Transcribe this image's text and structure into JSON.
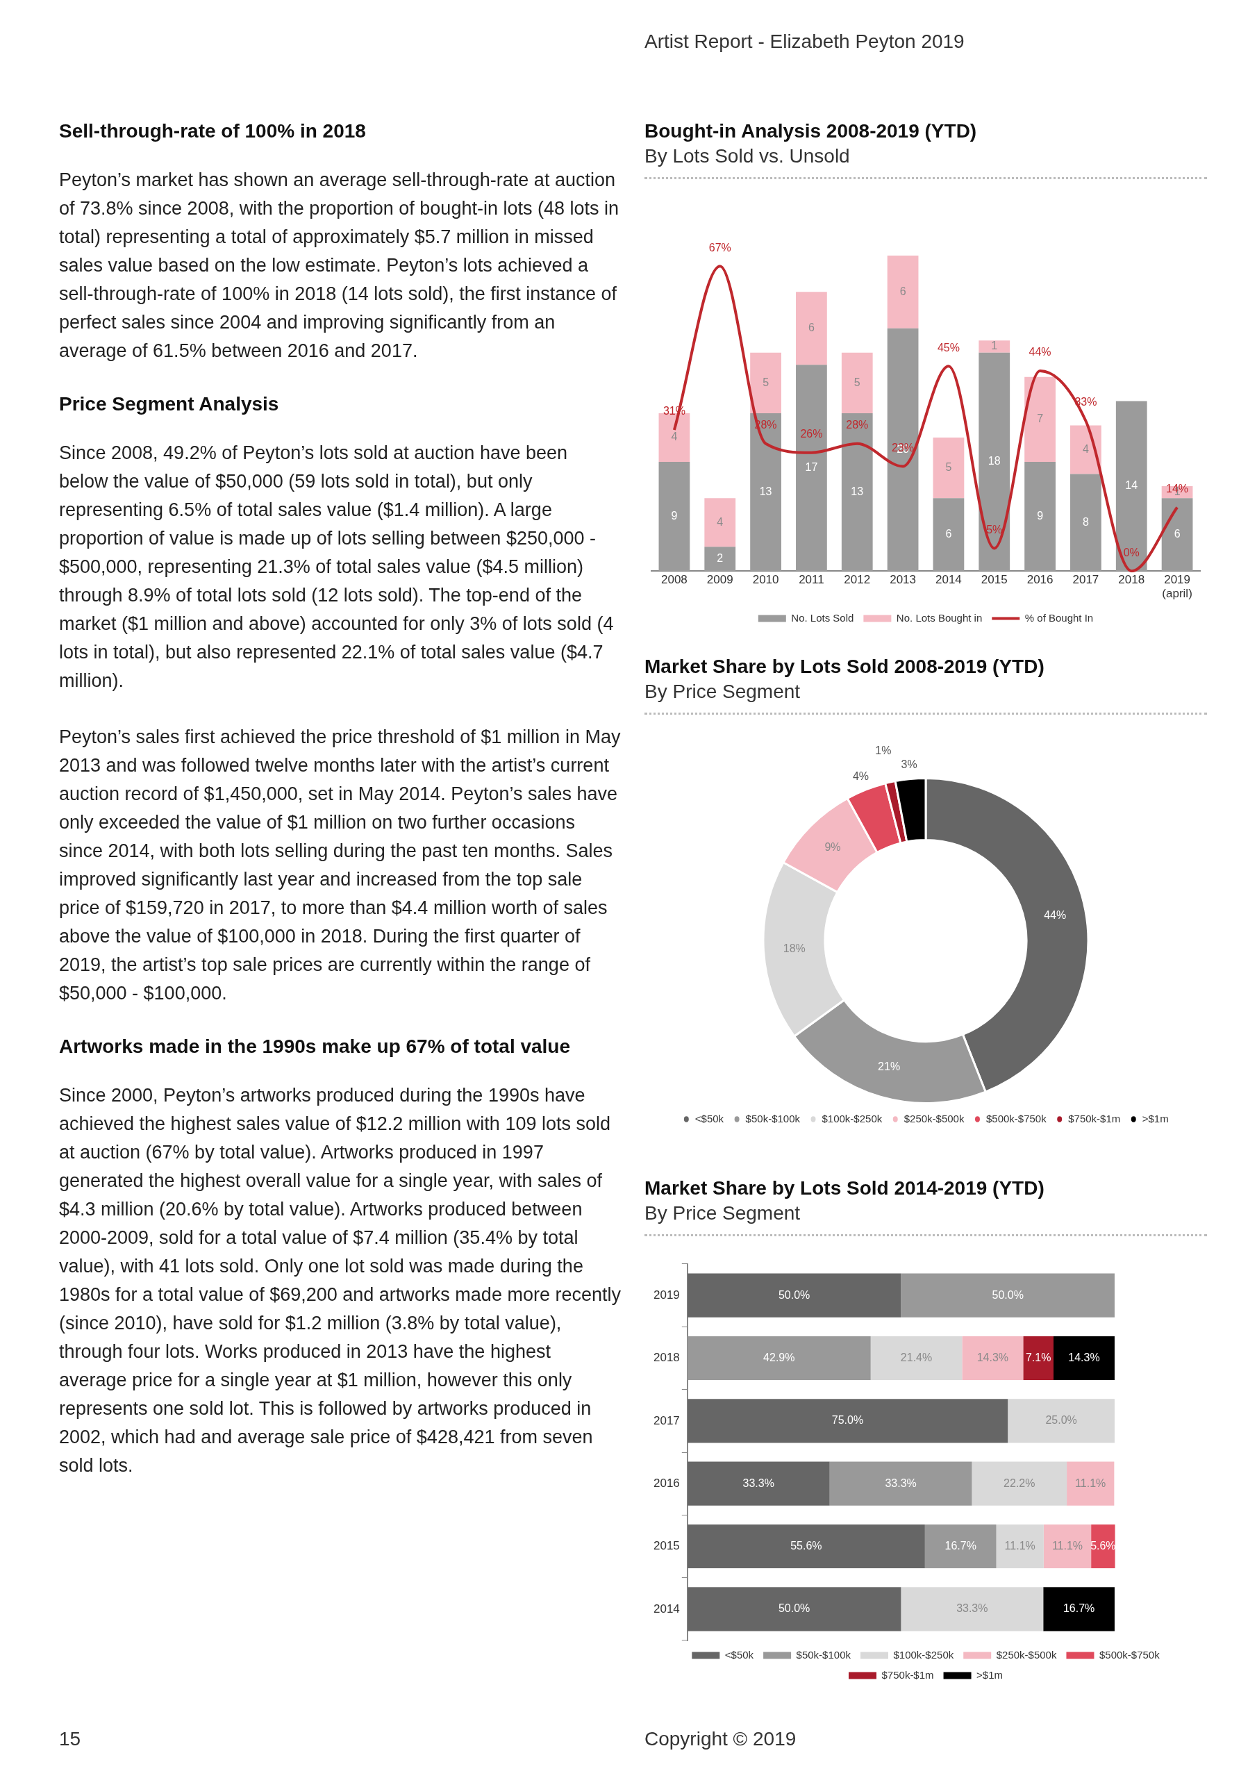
{
  "chart_data": [
    {
      "type": "other",
      "title": "Artist Report - Elizabeth Peyton 2019",
      "annotations": [
        "15",
        "Copyright © 2019"
      ]
    },
    {
      "type": "other",
      "title": "Sell-through-rate of 100% in 2018",
      "annotations": [
        "Peyton’s market has shown an average sell-through-rate at auction of 73.8% since 2008, with the proportion of bought-in lots (48 lots in total) representing a total of approximately $5.7 million in missed sales value based on the low estimate. Peyton’s lots achieved a sell-through-rate of 100% in 2018 (14 lots sold), the first instance of perfect sales since 2004 and improving significantly from an average of 61.5% between 2016 and 2017."
      ]
    },
    {
      "type": "other",
      "title": "Price Segment Analysis",
      "annotations": [
        "Since 2008, 49.2% of Peyton’s lots sold at auction have been below the value of $50,000 (59 lots sold in total), but only representing 6.5% of total sales value ($1.4 million). A large proportion of value is made up of lots selling between $250,000 - $500,000, representing 21.3% of total sales value ($4.5 million) through 8.9% of total lots sold (12 lots sold). The top-end of the market ($1 million and above) accounted for only 3% of lots sold (4 lots in total), but also represented 22.1% of total sales value ($4.7 million).",
        "Peyton’s sales first achieved the price threshold of $1 million in May 2013 and was followed twelve months later with the artist’s current auction record of $1,450,000, set in May 2014. Peyton’s sales have only exceeded the value of $1 million on two further occasions since 2014, with both lots selling during the past ten months. Sales improved significantly last year and increased from the top sale price of $159,720 in 2017, to more than $4.4 million worth of sales above the value of $100,000 in 2018. During the first quarter of 2019, the artist’s top sale prices are currently within the range of $50,000 - $100,000."
      ]
    },
    {
      "type": "other",
      "title": "Artworks made in the 1990s make up 67% of total value",
      "annotations": [
        "Since 2000, Peyton’s artworks produced during the 1990s have achieved the highest sales value of $12.2 million with 109 lots sold at auction (67% by total value). Artworks produced in 1997 generated the highest overall value for a single year, with sales of $4.3 million (20.6% by total value). Artworks produced between 2000-2009, sold for a total value of $7.4 million (35.4% by total value), with 41 lots sold. Only one lot sold was made during the 1980s for a total value of $69,200 and artworks made more recently (since 2010), have sold for $1.2 million (3.8% by total value), through four lots. Works produced in 2013 have the highest average price for a single year at $1 million, however this only represents one sold lot. This is followed by artworks produced in 2002, which had and average sale price of $428,421 from seven sold lots."
      ]
    },
    {
      "type": "bar",
      "title": "Bought-in Analysis 2008-2019 (YTD)",
      "subtitle": "By Lots Sold vs. Unsold",
      "stacked": true,
      "legend": "bottom",
      "tick_labels": "x",
      "grid": false,
      "categories": [
        "2008",
        "2009",
        "2010",
        "2011",
        "2012",
        "2013",
        "2014",
        "2015",
        "2016",
        "2017",
        "2018",
        "2019 (april)"
      ],
      "series": [
        {
          "name": "No. Lots Sold",
          "color": "#9b9b9b",
          "values": [
            9,
            2,
            13,
            17,
            13,
            20,
            6,
            18,
            9,
            8,
            14,
            6
          ],
          "value_labels": [
            "9",
            "2",
            "13",
            "17",
            "13",
            "20",
            "6",
            "18",
            "9",
            "8",
            "14",
            "6"
          ]
        },
        {
          "name": "No. Lots Bought in",
          "color": "#f5bac3",
          "values": [
            4,
            4,
            5,
            6,
            5,
            6,
            5,
            1,
            7,
            4,
            0,
            1
          ],
          "value_labels": [
            "4",
            "4",
            "5",
            "6",
            "5",
            "6",
            "5",
            "1",
            "7",
            "4",
            null,
            "1"
          ]
        },
        {
          "name": "% of Bought In",
          "type": "line",
          "axis": "y2",
          "color": "#c0282d",
          "values": [
            31,
            67,
            28,
            26,
            28,
            23,
            45,
            5,
            44,
            33,
            0,
            14
          ],
          "value_labels": [
            "31%",
            "67%",
            "28%",
            "26%",
            "28%",
            "23%",
            "45%",
            "5%",
            "44%",
            "33%",
            "0%",
            "14%"
          ]
        }
      ]
    },
    {
      "type": "donut",
      "title": "Market Share by Lots Sold 2008-2019 (YTD)",
      "subtitle": "By Price Segment",
      "legend": "bottom",
      "categories": [
        "<$50k",
        "$50k-$100k",
        "$100k-$250k",
        "$250k-$500k",
        "$500k-$750k",
        "$750k-$1m",
        ">$1m"
      ],
      "values": [
        44,
        21,
        18,
        9,
        4,
        1,
        3
      ],
      "colors": [
        "#666666",
        "#999999",
        "#d9d9d9",
        "#f4b9c2",
        "#e04a5c",
        "#a91b2b",
        "#000000"
      ],
      "value_labels": [
        "44%",
        "21%",
        "18%",
        "9%",
        "4%",
        "1%",
        "3%"
      ]
    },
    {
      "type": "bar",
      "title": "Market Share by Lots Sold 2014-2019 (YTD)",
      "subtitle": "By Price Segment",
      "stacked": true,
      "orientation": "horizontal",
      "legend": "bottom",
      "tick_labels": "y",
      "grid": false,
      "categories": [
        "2019",
        "2018",
        "2017",
        "2016",
        "2015",
        "2014"
      ],
      "series": [
        {
          "name": "<$50k",
          "color": "#666666",
          "values": [
            50.0,
            null,
            75.0,
            33.3,
            55.6,
            50.0
          ],
          "value_labels": [
            "50.0%",
            null,
            "75.0%",
            "33.3%",
            "55.6%",
            "50.0%"
          ]
        },
        {
          "name": "$50k-$100k",
          "color": "#999999",
          "values": [
            50.0,
            42.9,
            null,
            33.3,
            16.7,
            null
          ],
          "value_labels": [
            "50.0%",
            "42.9%",
            null,
            "33.3%",
            "16.7%",
            null
          ]
        },
        {
          "name": "$100k-$250k",
          "color": "#d9d9d9",
          "values": [
            null,
            21.4,
            25.0,
            22.2,
            11.1,
            33.3
          ],
          "value_labels": [
            null,
            "21.4%",
            "25.0%",
            "22.2%",
            "11.1%",
            "33.3%"
          ]
        },
        {
          "name": "$250k-$500k",
          "color": "#f4b9c2",
          "values": [
            null,
            14.3,
            null,
            11.1,
            11.1,
            null
          ],
          "value_labels": [
            null,
            "14.3%",
            null,
            "11.1%",
            "11.1%",
            null
          ]
        },
        {
          "name": "$500k-$750k",
          "color": "#e04a5c",
          "values": [
            null,
            null,
            null,
            null,
            5.6,
            null
          ],
          "value_labels": [
            null,
            null,
            null,
            null,
            "5.6%",
            null
          ]
        },
        {
          "name": "$750k-$1m",
          "color": "#a91b2b",
          "values": [
            null,
            7.1,
            null,
            null,
            null,
            null
          ],
          "value_labels": [
            null,
            "7.1%",
            null,
            null,
            null,
            null
          ]
        },
        {
          "name": ">$1m",
          "color": "#000000",
          "values": [
            null,
            14.3,
            null,
            null,
            null,
            16.7
          ],
          "value_labels": [
            null,
            "14.3%",
            null,
            null,
            null,
            "16.7%"
          ]
        }
      ]
    }
  ]
}
